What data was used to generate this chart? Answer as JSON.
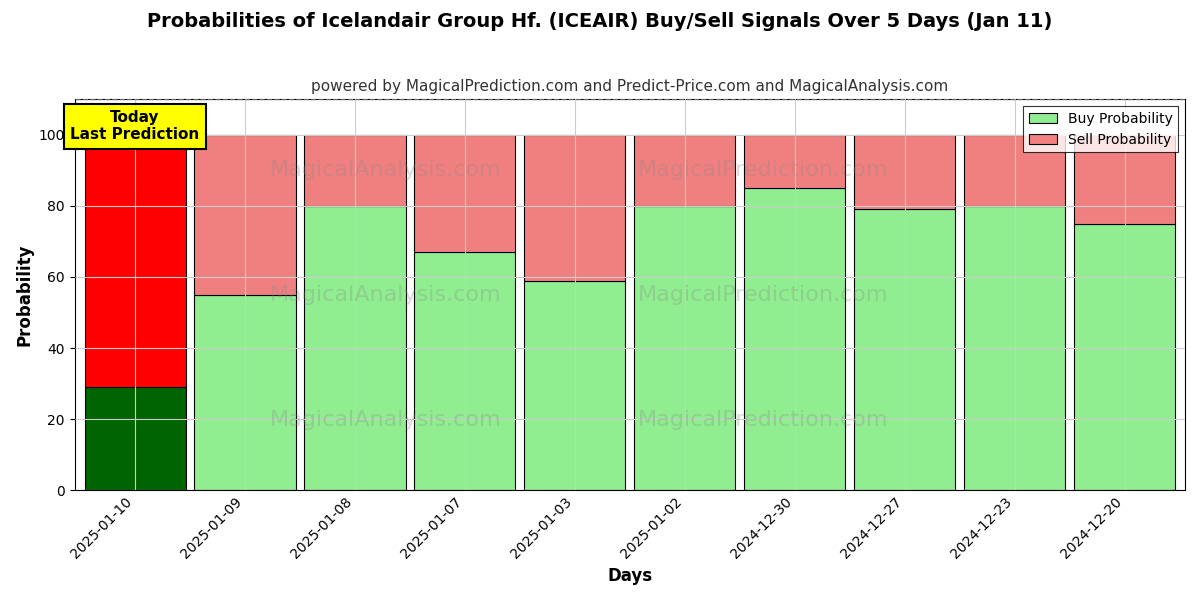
{
  "title": "Probabilities of Icelandair Group Hf. (ICEAIR) Buy/Sell Signals Over 5 Days (Jan 11)",
  "subtitle": "powered by MagicalPrediction.com and Predict-Price.com and MagicalAnalysis.com",
  "xlabel": "Days",
  "ylabel": "Probability",
  "dates": [
    "2025-01-10",
    "2025-01-09",
    "2025-01-08",
    "2025-01-07",
    "2025-01-03",
    "2025-01-02",
    "2024-12-30",
    "2024-12-27",
    "2024-12-23",
    "2024-12-20"
  ],
  "buy_values": [
    29,
    55,
    80,
    67,
    59,
    80,
    85,
    79,
    80,
    75
  ],
  "sell_values": [
    71,
    45,
    20,
    33,
    41,
    20,
    15,
    21,
    20,
    25
  ],
  "buy_color_today": "#006400",
  "sell_color_today": "#ff0000",
  "buy_color_rest": "#90EE90",
  "sell_color_rest": "#f08080",
  "bar_edgecolor": "#000000",
  "today_annotation_text": "Today\nLast Prediction",
  "today_annotation_bgcolor": "#ffff00",
  "today_annotation_edgecolor": "#000000",
  "legend_buy_label": "Buy Probability",
  "legend_sell_label": "Sell Probability",
  "ylim": [
    0,
    110
  ],
  "yticks": [
    0,
    20,
    40,
    60,
    80,
    100
  ],
  "dashed_line_y": 110,
  "grid_color": "#cccccc",
  "background_color": "#ffffff",
  "title_fontsize": 14,
  "subtitle_fontsize": 11,
  "axis_label_fontsize": 12,
  "tick_fontsize": 10
}
